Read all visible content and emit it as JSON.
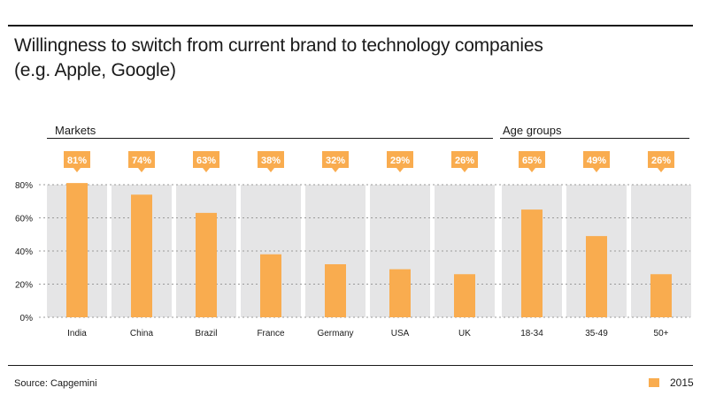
{
  "chart_data": {
    "type": "bar",
    "title": "Willingness to switch from current brand to technology companies",
    "subtitle": "(e.g. Apple, Google)",
    "groups": [
      {
        "label": "Markets",
        "categories": [
          "India",
          "China",
          "Brazil",
          "France",
          "Germany",
          "USA",
          "UK"
        ]
      },
      {
        "label": "Age groups",
        "categories": [
          "18-34",
          "35-49",
          "50+"
        ]
      }
    ],
    "categories": [
      "India",
      "China",
      "Brazil",
      "France",
      "Germany",
      "USA",
      "UK",
      "18-34",
      "35-49",
      "50+"
    ],
    "series": [
      {
        "name": "2015",
        "values": [
          81,
          74,
          63,
          38,
          32,
          29,
          26,
          65,
          49,
          26
        ],
        "color": "#f9ac4f"
      }
    ],
    "data_labels": [
      "81%",
      "74%",
      "63%",
      "38%",
      "32%",
      "29%",
      "26%",
      "65%",
      "49%",
      "26%"
    ],
    "yticks": [
      "0%",
      "20%",
      "40%",
      "60%",
      "80%"
    ],
    "ylim": [
      0,
      80
    ],
    "grid": false,
    "legend": "bottom-right",
    "panel_color": "#e5e5e6",
    "source": "Source: Capgemini"
  }
}
